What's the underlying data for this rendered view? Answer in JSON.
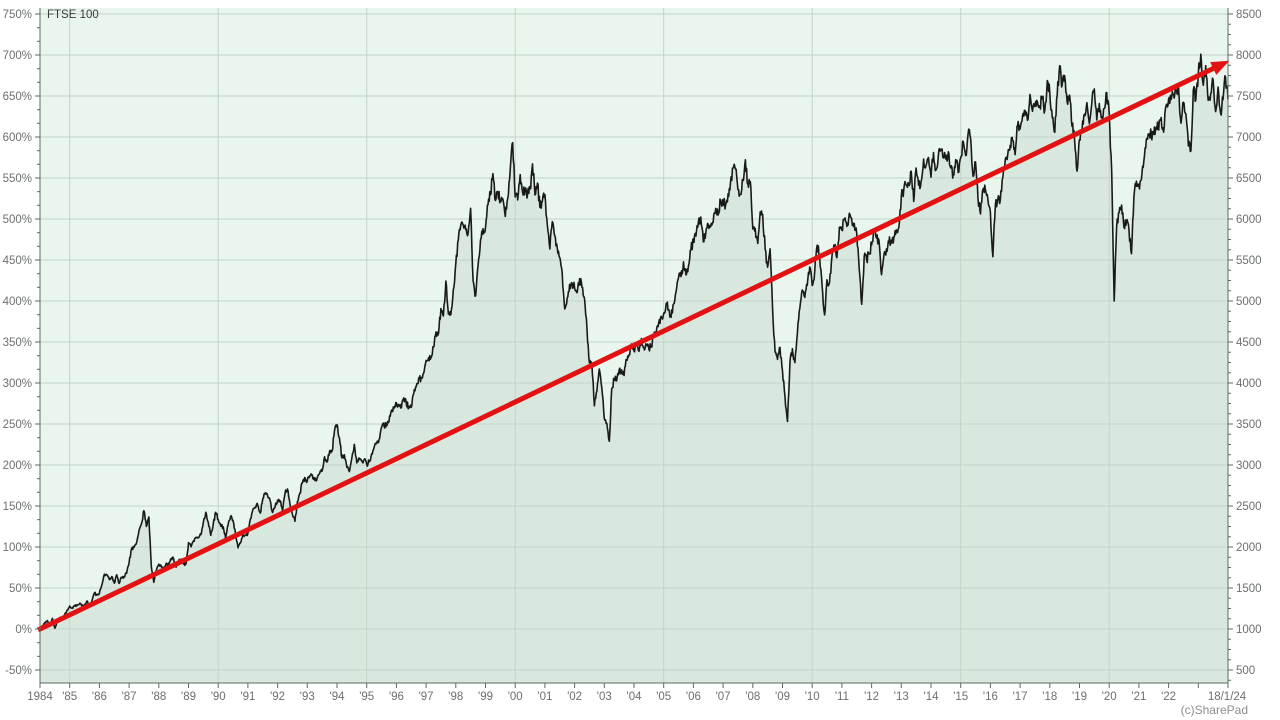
{
  "watermark": "(c)SharePad",
  "chart_data": {
    "type": "line",
    "title": "FTSE 100",
    "legend": "FTSE 100",
    "description": "FTSE 100 index total price history since inception (base 1000 = 0%) with straight red trend arrow from 0% in 1984 to about 690% (approx 7900) at 18/1/24",
    "x_axis": {
      "start_year": 1984,
      "end_year_fraction": 2024.05,
      "tick_labels": [
        "1984",
        "'85",
        "'86",
        "'87",
        "'88",
        "'89",
        "'90",
        "'91",
        "'92",
        "'93",
        "'94",
        "'95",
        "'96",
        "'97",
        "'98",
        "'99",
        "'00",
        "'01",
        "'02",
        "'03",
        "'04",
        "'05",
        "'06",
        "'07",
        "'08",
        "'09",
        "'10",
        "'11",
        "'12",
        "'13",
        "'14",
        "'15",
        "'16",
        "'17",
        "'18",
        "'19",
        "'20",
        "'21",
        "'22"
      ],
      "unlabeled_tick_year": 2023,
      "end_date_label": "18/1/24",
      "gridline_years": [
        1985,
        1990,
        1995,
        2000,
        2005,
        2010,
        2015,
        2020
      ]
    },
    "left_axis": {
      "unit": "percent",
      "min": -50,
      "max": 750,
      "step": 50,
      "tick_labels": [
        "750%",
        "700%",
        "650%",
        "600%",
        "550%",
        "500%",
        "450%",
        "400%",
        "350%",
        "300%",
        "250%",
        "200%",
        "150%",
        "100%",
        "50%",
        "0%",
        "-50%"
      ]
    },
    "right_axis": {
      "unit": "index points",
      "min": 500,
      "max": 8500,
      "step": 500,
      "minor_step": 125,
      "tick_labels": [
        "8500",
        "8000",
        "7500",
        "7000",
        "6500",
        "6000",
        "5500",
        "5000",
        "4500",
        "4000",
        "3500",
        "3000",
        "2500",
        "2000",
        "1500",
        "1000",
        "500"
      ]
    },
    "base_value": 1000,
    "series": {
      "name": "FTSE 100",
      "start_year": 1984,
      "points_per_year": 12,
      "monthly_values": [
        1000,
        1038,
        1080,
        1102,
        1056,
        1130,
        1010,
        1096,
        1140,
        1118,
        1178,
        1232,
        1280,
        1259,
        1288,
        1292,
        1313,
        1280,
        1290,
        1341,
        1290,
        1350,
        1439,
        1413,
        1435,
        1543,
        1668,
        1660,
        1603,
        1639,
        1558,
        1661,
        1556,
        1632,
        1637,
        1679,
        1808,
        1979,
        1998,
        2050,
        2203,
        2284,
        2443,
        2250,
        2366,
        1750,
        1570,
        1713,
        1790,
        1768,
        1743,
        1802,
        1772,
        1858,
        1854,
        1754,
        1826,
        1852,
        1792,
        1793,
        2052,
        2002,
        2075,
        2118,
        2114,
        2151,
        2297,
        2423,
        2299,
        2143,
        2276,
        2423,
        2337,
        2255,
        2247,
        2103,
        2268,
        2375,
        2326,
        2163,
        1990,
        2050,
        2149,
        2144,
        2170,
        2343,
        2457,
        2486,
        2510,
        2414,
        2588,
        2646,
        2622,
        2566,
        2420,
        2493,
        2571,
        2562,
        2440,
        2654,
        2707,
        2521,
        2400,
        2313,
        2553,
        2658,
        2779,
        2847,
        2807,
        2868,
        2879,
        2813,
        2841,
        2900,
        2926,
        3100,
        3037,
        3171,
        3166,
        3418,
        3492,
        3328,
        3086,
        3125,
        2971,
        2919,
        3083,
        3251,
        3026,
        3083,
        3048,
        3065,
        3010,
        3038,
        3137,
        3216,
        3260,
        3314,
        3463,
        3478,
        3508,
        3529,
        3664,
        3689,
        3759,
        3728,
        3700,
        3818,
        3748,
        3711,
        3703,
        3868,
        3954,
        4061,
        4058,
        4118,
        4276,
        4308,
        4313,
        4436,
        4621,
        4604,
        4908,
        4817,
        5244,
        4842,
        4832,
        5135,
        5458,
        5744,
        5932,
        5928,
        5871,
        5833,
        6130,
        5249,
        5064,
        5438,
        5744,
        5882,
        5896,
        6175,
        6295,
        6552,
        6226,
        6319,
        6231,
        6246,
        6030,
        6256,
        6597,
        6930,
        6269,
        6233,
        6540,
        6327,
        6359,
        6313,
        6365,
        6672,
        6294,
        6438,
        6142,
        6222,
        6298,
        5918,
        5634,
        5967,
        5796,
        5643,
        5529,
        5345,
        4904,
        5039,
        5203,
        5217,
        5164,
        5101,
        5272,
        5165,
        5032,
        4656,
        4246,
        4227,
        3722,
        3901,
        4169,
        3940,
        3567,
        3510,
        3290,
        3926,
        4048,
        4031,
        4157,
        4161,
        4091,
        4287,
        4343,
        4477,
        4390,
        4492,
        4386,
        4542,
        4430,
        4464,
        4413,
        4459,
        4571,
        4624,
        4737,
        4814,
        4852,
        4969,
        4894,
        4801,
        4964,
        5113,
        5282,
        5297,
        5478,
        5317,
        5423,
        5619,
        5760,
        5792,
        5965,
        6023,
        5723,
        5833,
        5928,
        5906,
        5961,
        6129,
        6049,
        6221,
        6203,
        6171,
        6308,
        6449,
        6621,
        6608,
        6360,
        6303,
        6467,
        6722,
        6432,
        6457,
        5880,
        5884,
        5702,
        6087,
        6054,
        5626,
        5412,
        5637,
        4902,
        4377,
        4288,
        4434,
        4149,
        3830,
        3530,
        4244,
        4418,
        4249,
        4608,
        4909,
        5134,
        5044,
        5191,
        5413,
        5189,
        5355,
        5680,
        5553,
        5188,
        4830,
        5258,
        5225,
        5549,
        5675,
        5528,
        5900,
        5863,
        5994,
        5909,
        6070,
        5990,
        5946,
        5815,
        5395,
        4960,
        5544,
        5505,
        5572,
        5682,
        5871,
        5768,
        5738,
        5321,
        5571,
        5635,
        5711,
        5742,
        5783,
        5867,
        5898,
        6277,
        6361,
        6412,
        6430,
        6583,
        6215,
        6621,
        6413,
        6462,
        6731,
        6651,
        6749,
        6510,
        6810,
        6598,
        6780,
        6844,
        6744,
        6730,
        6820,
        6623,
        6546,
        6723,
        6566,
        6749,
        6946,
        6773,
        7040,
        6984,
        6521,
        6696,
        6248,
        6062,
        6361,
        6356,
        6242,
        6084,
        5540,
        6175,
        6242,
        6231,
        6504,
        6724,
        6782,
        6899,
        6954,
        6784,
        7143,
        7099,
        7263,
        7323,
        7204,
        7520,
        7313,
        7372,
        7431,
        7373,
        7493,
        7327,
        7688,
        7534,
        7232,
        7057,
        7509,
        7870,
        7637,
        7749,
        7432,
        7510,
        7128,
        6980,
        6584,
        6969,
        7075,
        7279,
        7418,
        7162,
        7426,
        7587,
        7207,
        7408,
        7248,
        7347,
        7542,
        7286,
        6580,
        5000,
        5901,
        6077,
        6170,
        5898,
        5964,
        5866,
        5577,
        6266,
        6461,
        6407,
        6483,
        6714,
        6970,
        7023,
        7037,
        7032,
        7120,
        7086,
        7238,
        7059,
        7385,
        7464,
        7458,
        7516,
        7545,
        7608,
        7169,
        7423,
        7284,
        6890,
        6830,
        7573,
        7452,
        7772,
        8010,
        7632,
        7870,
        7446,
        7532,
        7699,
        7310,
        7608,
        7290,
        7454,
        7733,
        7460
      ],
      "color": "#1a1a1a"
    },
    "trend_line": {
      "color": "#e31212",
      "from": {
        "year": 1984.0,
        "percent": 0
      },
      "to": {
        "year": 2024.05,
        "percent": 693
      }
    },
    "colors": {
      "plot_bg": "#e9f6ee",
      "area_fill": "#d9e8df",
      "gridline": "#c4d4c9",
      "axis": "#5f6a63",
      "label": "#6b706e",
      "price_line": "#1a1a1a",
      "trend": "#e31212",
      "legend_text": "#3a3a3a",
      "watermark_text": "#8a8f8c"
    }
  }
}
